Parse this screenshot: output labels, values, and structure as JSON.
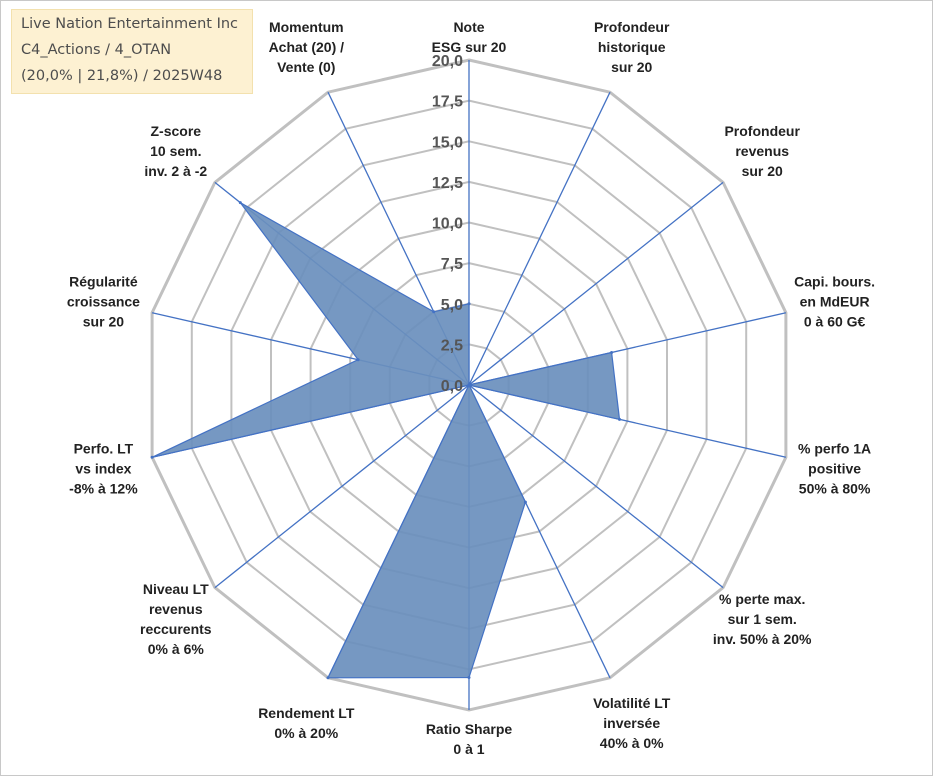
{
  "info": {
    "company": "Live Nation Entertainment Inc",
    "portfolio": "C4_Actions / 4_OTAN",
    "stats": "(20,0% | 21,8%) / 2025W48"
  },
  "colors": {
    "fill": "#6a8fbd",
    "stroke": "#4472c4",
    "grid": "#c0c0c0",
    "spoke": "#4472c4"
  },
  "chart_data": {
    "type": "radar",
    "rmin": 0,
    "rmax": 20,
    "ticks": [
      "0,0",
      "2,5",
      "5,0",
      "7,5",
      "10,0",
      "12,5",
      "15,0",
      "17,5",
      "20,0"
    ],
    "axes": [
      {
        "label": [
          "Note",
          "ESG sur 20"
        ],
        "value": 5
      },
      {
        "label": [
          "Profondeur",
          "historique",
          "sur 20"
        ],
        "value": 0
      },
      {
        "label": [
          "Profondeur",
          "revenus",
          "sur 20"
        ],
        "value": 0
      },
      {
        "label": [
          "Capi. bours.",
          "en MdEUR",
          "0 à 60 G€"
        ],
        "value": 9
      },
      {
        "label": [
          "% perfo 1A",
          "positive",
          "50% à 80%"
        ],
        "value": 9.5
      },
      {
        "label": [
          "% perte max.",
          "sur 1 sem.",
          "inv. 50% à 20%"
        ],
        "value": 0
      },
      {
        "label": [
          "Volatilité LT",
          "inversée",
          "40% à 0%"
        ],
        "value": 8
      },
      {
        "label": [
          "Ratio Sharpe",
          "0 à 1"
        ],
        "value": 18
      },
      {
        "label": [
          "Rendement LT",
          "0% à 20%"
        ],
        "value": 20
      },
      {
        "label": [
          "Niveau LT",
          "revenus",
          "reccurents",
          "0% à 6%"
        ],
        "value": 0
      },
      {
        "label": [
          "Perfo. LT",
          "vs index",
          "-8% à 12%"
        ],
        "value": 20
      },
      {
        "label": [
          "Régularité",
          "croissance",
          "sur 20"
        ],
        "value": 7
      },
      {
        "label": [
          "Z-score",
          "10 sem.",
          "inv. 2 à -2"
        ],
        "value": 18
      },
      {
        "label": [
          "Momentum",
          "Achat (20) /",
          "Vente (0)"
        ],
        "value": 5
      }
    ]
  }
}
